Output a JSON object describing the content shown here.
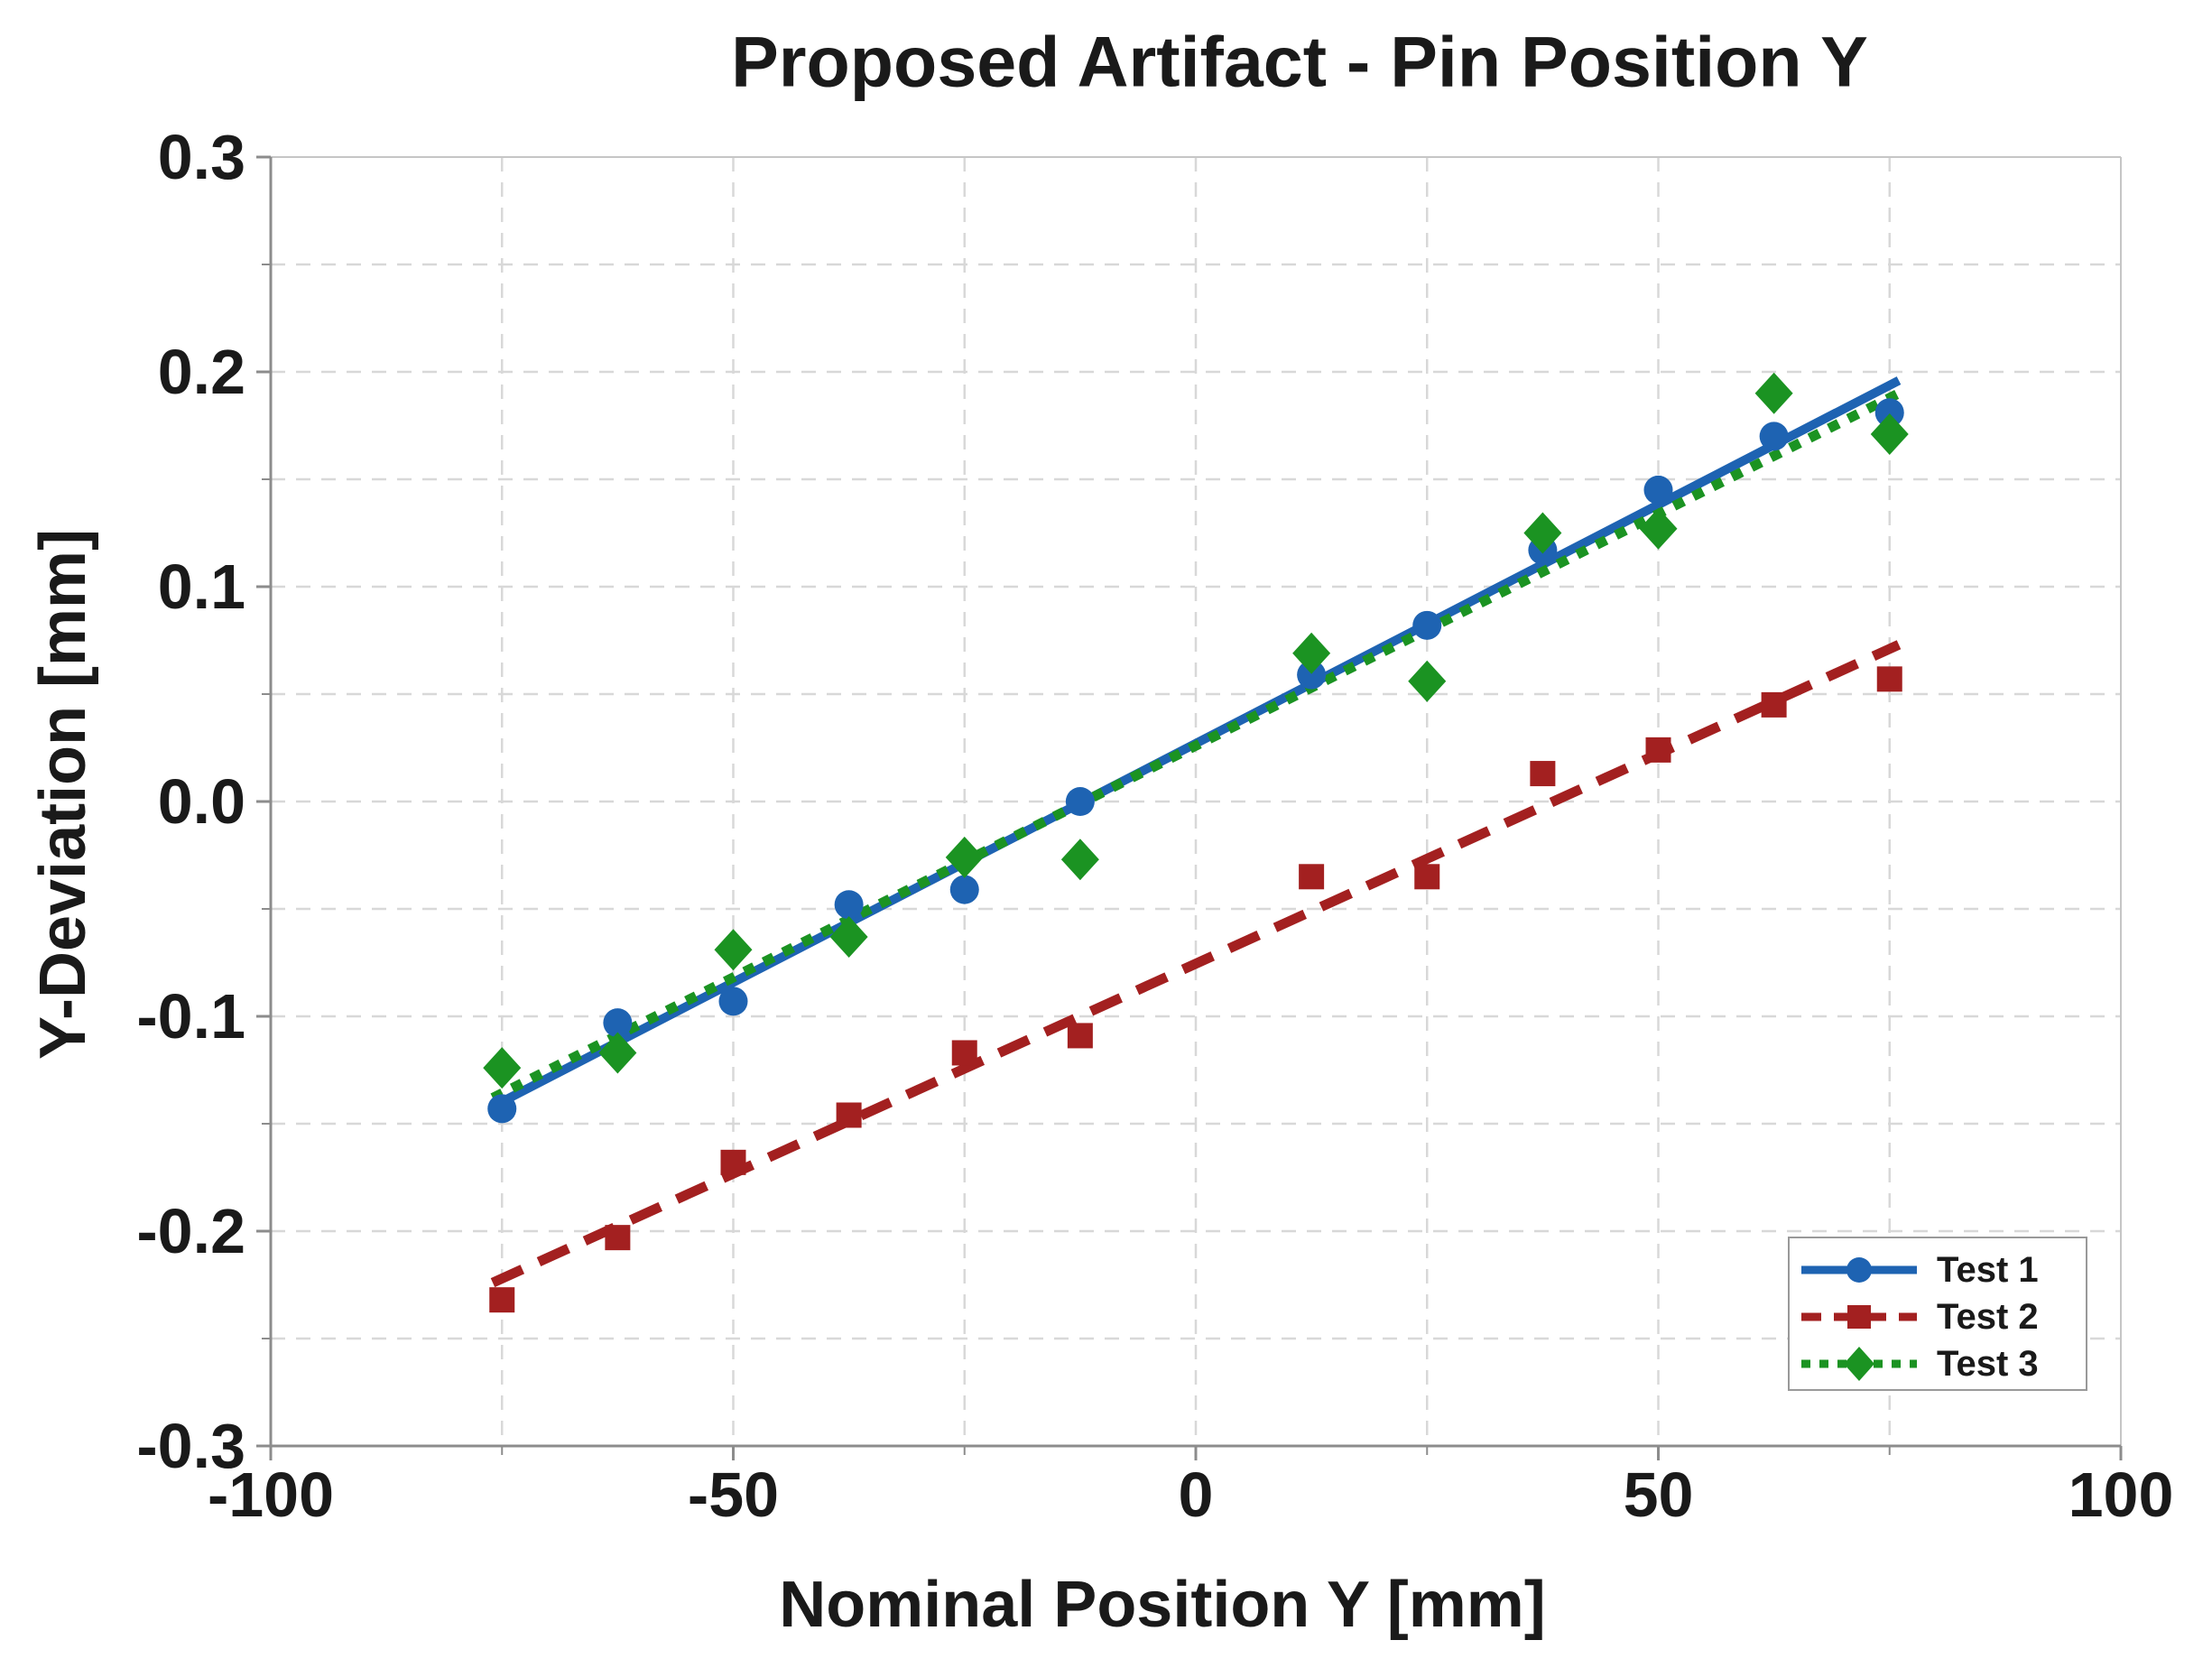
{
  "title": "Proposed Artifact - Pin Position Y",
  "colors": {
    "test1_blue": "#1E63B2",
    "test2_red": "#A32020",
    "test3_green": "#1B9322",
    "grid": "#d8d8d8",
    "axis_line": "#8c8c8c",
    "plot_border": "#c6c6c6",
    "text": "#1a1a1a",
    "legend_border": "#999999",
    "background": "#ffffff"
  },
  "chart_data": {
    "type": "scatter",
    "title": "Proposed Artifact - Pin Position Y",
    "xlabel": "Nominal Position Y [mm]",
    "ylabel": "Y-Deviation [mm]",
    "xlim": [
      -100,
      100
    ],
    "ylim": [
      -0.3,
      0.3
    ],
    "grid": true,
    "grid_style": "dashed",
    "x_major_ticks": [
      -100,
      -50,
      0,
      50,
      100
    ],
    "x_tick_labels": [
      "-100",
      "-50",
      "0",
      "50",
      "100"
    ],
    "x_minor_ticks": [
      -75,
      -25,
      25,
      75
    ],
    "x_gridlines": [
      -75,
      -50,
      -25,
      0,
      25,
      50,
      75
    ],
    "y_major_ticks": [
      0.3,
      0.2,
      0.1,
      0,
      -0.1,
      -0.2,
      -0.3
    ],
    "y_tick_labels": [
      "0.3",
      "0.2",
      "0.1",
      "0.0",
      "-0.1",
      "-0.2",
      "-0.3"
    ],
    "y_minor_ticks": [
      0.25,
      0.15,
      0.05,
      -0.05,
      -0.15,
      -0.25
    ],
    "y_gridlines": [
      0.25,
      0.2,
      0.15,
      0.1,
      0.05,
      0,
      -0.05,
      -0.1,
      -0.15,
      -0.2,
      -0.25
    ],
    "x": [
      -75,
      -62.5,
      -50,
      -37.5,
      -25,
      -12.5,
      12.5,
      25,
      37.5,
      50,
      62.5,
      75
    ],
    "series": [
      {
        "name": "Test 1",
        "color": "#1E63B2",
        "marker": "circle",
        "line_style": "solid",
        "values": [
          -0.143,
          -0.103,
          -0.093,
          -0.048,
          -0.041,
          0.0,
          0.059,
          0.082,
          0.117,
          0.145,
          0.17,
          0.181
        ],
        "trend_x": [
          -76,
          76
        ],
        "trend_y": [
          -0.142,
          0.196
        ]
      },
      {
        "name": "Test 2",
        "color": "#A32020",
        "marker": "square",
        "line_style": "dashed",
        "values": [
          -0.232,
          -0.203,
          -0.168,
          -0.146,
          -0.117,
          -0.109,
          -0.035,
          -0.035,
          0.013,
          0.024,
          0.045,
          0.057
        ],
        "trend_x": [
          -76,
          76
        ],
        "trend_y": [
          -0.224,
          0.073
        ]
      },
      {
        "name": "Test 3",
        "color": "#1B9322",
        "marker": "diamond",
        "line_style": "dotted",
        "values": [
          -0.124,
          -0.117,
          -0.069,
          -0.063,
          -0.026,
          -0.027,
          0.069,
          0.056,
          0.125,
          0.127,
          0.19,
          0.171
        ],
        "trend_x": [
          -76,
          76
        ],
        "trend_y": [
          -0.138,
          0.19
        ]
      }
    ],
    "legend": {
      "position": "lower-right",
      "items": [
        "Test 1",
        "Test 2",
        "Test 3"
      ]
    }
  }
}
